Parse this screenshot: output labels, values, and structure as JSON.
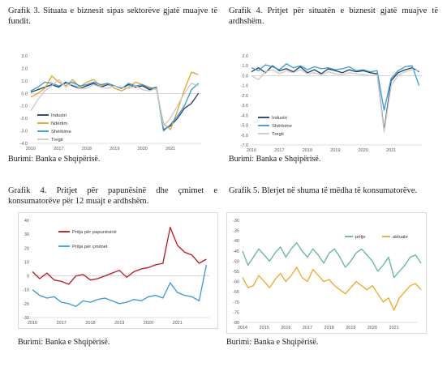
{
  "captions": {
    "g3": "Grafik 3. Situata e biznesit sipas sektorëve gjatë muajve të fundit.",
    "g4a": "Grafik 4. Pritjet për situatën e biznesit gjatë muajve të ardhshëm.",
    "g4b": "Grafik 4. Pritjet për papunësinë dhe çmimet e konsumatorëve për 12 muajt e ardhshëm.",
    "g5": "Grafik 5. Blerjet në shuma të mëdha të konsumatorëve."
  },
  "sources": {
    "g3": "Burimi: Banka e Shqipërisë.",
    "g4a": "Burimi: Banka e Shqipërisë.",
    "g4b": "Burimi: Banka e Shqipërisë.",
    "g5": "Burimi: Banka e Shqipërisë."
  },
  "chart_data": [
    {
      "id": "g3",
      "type": "line",
      "x_start": 2016.0,
      "x_step": 0.25,
      "xlim": [
        2016,
        2022.1
      ],
      "x_ticks": [
        "2016",
        "2017",
        "2018",
        "2019",
        "2020",
        "2021"
      ],
      "ylim": [
        -4.0,
        3.0
      ],
      "y_step": 1.0,
      "y_tick_labels": [
        "3.0",
        "2.0",
        "1.0",
        "0.0",
        "-1.0",
        "-2.0",
        "-3.0",
        "-4.0"
      ],
      "legend_position": "bottom-left",
      "series": [
        {
          "name": "Industri",
          "color": "#1f3b63",
          "values": [
            0.1,
            0.3,
            0.5,
            0.7,
            0.5,
            0.9,
            0.6,
            0.4,
            0.6,
            0.8,
            0.5,
            0.7,
            0.6,
            0.4,
            0.7,
            0.5,
            0.6,
            0.3,
            0.5,
            -2.9,
            -2.6,
            -2.0,
            -1.2,
            -0.8,
            0.0
          ]
        },
        {
          "name": "Ndërtim",
          "color": "#e8a21a",
          "values": [
            -0.3,
            0.0,
            0.4,
            1.4,
            0.9,
            0.6,
            1.1,
            0.5,
            0.9,
            1.1,
            0.6,
            0.8,
            0.4,
            0.2,
            0.5,
            0.9,
            0.7,
            0.5,
            0.3,
            -2.4,
            -2.9,
            -1.4,
            0.3,
            1.7,
            1.5
          ]
        },
        {
          "name": "Shërbime",
          "color": "#3399d8",
          "values": [
            0.2,
            0.5,
            0.9,
            0.8,
            0.6,
            0.8,
            0.9,
            0.6,
            0.7,
            0.9,
            0.7,
            0.8,
            0.6,
            0.4,
            0.8,
            0.6,
            0.7,
            0.4,
            0.5,
            -3.0,
            -2.5,
            -1.8,
            -1.0,
            0.3,
            0.8
          ]
        },
        {
          "name": "Tregti",
          "color": "#c9c9c9",
          "values": [
            -1.4,
            -0.5,
            0.2,
            0.6,
            1.1,
            0.5,
            0.8,
            0.4,
            0.4,
            0.7,
            0.5,
            0.4,
            0.6,
            0.5,
            0.4,
            0.6,
            0.3,
            0.2,
            0.4,
            -2.6,
            -2.0,
            -1.0,
            0.0,
            0.8,
            0.6
          ]
        }
      ]
    },
    {
      "id": "g4a",
      "type": "line",
      "x_start": 2016.0,
      "x_step": 0.25,
      "xlim": [
        2016,
        2022.1
      ],
      "x_ticks": [
        "2016",
        "2017",
        "2018",
        "2019",
        "2020",
        "2021"
      ],
      "ylim": [
        -7.0,
        2.0
      ],
      "y_step": 1.0,
      "y_tick_labels": [
        "2.0",
        "1.0",
        "0.0",
        "-1.0",
        "-2.0",
        "-3.0",
        "-4.0",
        "-5.0",
        "-6.0",
        "-7.0"
      ],
      "legend_position": "bottom-left",
      "series": [
        {
          "name": "Industri",
          "color": "#1f3b63",
          "values": [
            0.4,
            0.8,
            0.3,
            1.0,
            0.5,
            0.7,
            0.4,
            0.9,
            0.3,
            0.6,
            0.2,
            0.7,
            0.5,
            0.3,
            0.6,
            0.4,
            0.5,
            0.3,
            0.2,
            -5.5,
            -0.5,
            0.3,
            0.6,
            0.8,
            0.4
          ]
        },
        {
          "name": "Shërbime",
          "color": "#3399d8",
          "values": [
            0.8,
            0.5,
            1.1,
            0.9,
            0.6,
            1.2,
            0.8,
            1.0,
            0.6,
            0.9,
            0.7,
            0.8,
            0.6,
            0.7,
            0.9,
            0.5,
            0.6,
            0.4,
            0.5,
            -3.5,
            -0.3,
            0.5,
            0.9,
            1.0,
            -1.0
          ]
        },
        {
          "name": "Tregti",
          "color": "#c9c9c9",
          "values": [
            0.0,
            -0.4,
            0.4,
            0.6,
            0.2,
            0.5,
            0.3,
            0.6,
            0.2,
            0.3,
            0.1,
            0.4,
            0.2,
            0.1,
            0.3,
            0.2,
            0.1,
            0.0,
            0.1,
            -5.7,
            -1.0,
            0.0,
            0.4,
            0.6,
            0.5
          ]
        }
      ]
    },
    {
      "id": "g4b",
      "type": "line",
      "x_start": 2016.0,
      "x_step": 0.25,
      "xlim": [
        2016,
        2022.1
      ],
      "x_ticks": [
        "2016",
        "2017",
        "2018",
        "2019",
        "2020",
        "2021"
      ],
      "ylim": [
        -30,
        40
      ],
      "y_step": 10,
      "y_tick_labels": [
        "40",
        "30",
        "20",
        "10",
        "0",
        "-10",
        "-20",
        "-30"
      ],
      "legend_position": "top-left",
      "series": [
        {
          "name": "Pritja për papunësinë",
          "color": "#c0141c",
          "values": [
            3,
            -2,
            2,
            -3,
            -4,
            -6,
            0,
            1,
            -3,
            -2,
            0,
            2,
            4,
            -1,
            3,
            5,
            6,
            8,
            9,
            35,
            22,
            17,
            15,
            9,
            12
          ]
        },
        {
          "name": "Pritja për çmimet",
          "color": "#3399d8",
          "values": [
            -10,
            -14,
            -16,
            -15,
            -19,
            -20,
            -22,
            -18,
            -19,
            -17,
            -16,
            -18,
            -20,
            -19,
            -17,
            -18,
            -15,
            -14,
            -16,
            -5,
            -12,
            -14,
            -15,
            -18,
            8
          ]
        }
      ]
    },
    {
      "id": "g5",
      "type": "line",
      "x_start": 2014.0,
      "x_step": 0.25,
      "xlim": [
        2014,
        2022.1
      ],
      "x_ticks": [
        "2014",
        "2015",
        "2016",
        "2017",
        "2018",
        "2019",
        "2020",
        "2021"
      ],
      "ylim": [
        -80,
        -30
      ],
      "y_step": 5,
      "y_tick_labels": [
        "-30",
        "-35",
        "-40",
        "-45",
        "-50",
        "-55",
        "-60",
        "-65",
        "-70",
        "-75",
        "-80"
      ],
      "legend_position": "top-right",
      "series": [
        {
          "name": "pritje",
          "color": "#5fb59a",
          "values": [
            -45,
            -52,
            -48,
            -44,
            -47,
            -50,
            -46,
            -43,
            -48,
            -44,
            -41,
            -45,
            -48,
            -44,
            -47,
            -51,
            -46,
            -44,
            -48,
            -53,
            -50,
            -46,
            -44,
            -47,
            -50,
            -55,
            -52,
            -48,
            -58,
            -55,
            -52,
            -48,
            -47,
            -51
          ]
        },
        {
          "name": "aktuale",
          "color": "#f0a81e",
          "values": [
            -58,
            -63,
            -62,
            -57,
            -60,
            -63,
            -59,
            -56,
            -60,
            -57,
            -53,
            -58,
            -60,
            -54,
            -57,
            -60,
            -59,
            -62,
            -64,
            -66,
            -63,
            -60,
            -62,
            -64,
            -62,
            -66,
            -70,
            -68,
            -74,
            -68,
            -65,
            -62,
            -61,
            -64
          ]
        }
      ]
    }
  ]
}
